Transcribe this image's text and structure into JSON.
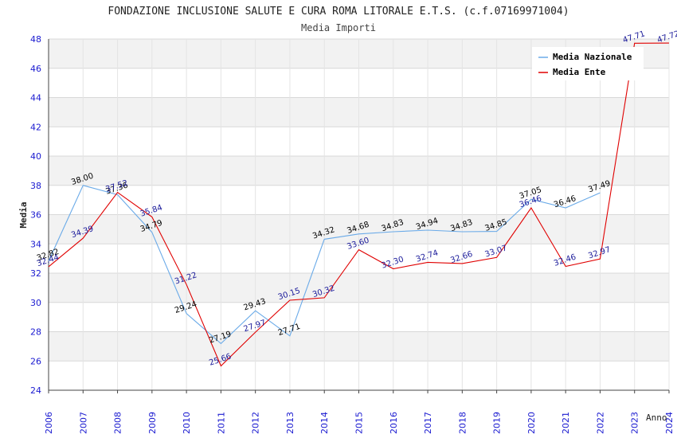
{
  "chart_data": {
    "type": "line",
    "title": "FONDAZIONE INCLUSIONE SALUTE E CURA ROMA LITORALE E.T.S. (c.f.07169971004)",
    "subtitle": "Media Importi",
    "xlabel": "Anno",
    "ylabel": "Media",
    "ylim": [
      24,
      48
    ],
    "yticks": [
      24,
      26,
      28,
      30,
      32,
      34,
      36,
      38,
      40,
      42,
      44,
      46,
      48
    ],
    "x": [
      "2006",
      "2007",
      "2008",
      "2009",
      "2010",
      "2011",
      "2012",
      "2013",
      "2014",
      "2015",
      "2016",
      "2017",
      "2018",
      "2019",
      "2020",
      "2021",
      "2022",
      "2023",
      "2024"
    ],
    "grid": true,
    "legend_position": "top-right",
    "series": [
      {
        "name": "Media Nazionale",
        "color": "#6aaae8",
        "label_color": "#000000",
        "values": [
          32.82,
          38.0,
          37.36,
          34.79,
          29.24,
          27.19,
          29.43,
          27.71,
          34.32,
          34.68,
          34.83,
          34.94,
          34.83,
          34.85,
          37.05,
          36.46,
          37.49,
          null,
          null
        ],
        "labels": [
          "32.82",
          "38.00",
          "37.36",
          "34.79",
          "29.24",
          "27.19",
          "29.43",
          "27.71",
          "34.32",
          "34.68",
          "34.83",
          "34.94",
          "34.83",
          "34.85",
          "37.05",
          "36.46",
          "37.49",
          "",
          ""
        ]
      },
      {
        "name": "Media Ente",
        "color": "#e00000",
        "label_color": "#1a1a9a",
        "values": [
          32.44,
          34.39,
          37.52,
          35.84,
          31.22,
          25.66,
          27.97,
          30.15,
          30.32,
          33.6,
          32.3,
          32.74,
          32.66,
          33.07,
          36.46,
          32.46,
          32.97,
          47.71,
          47.72
        ],
        "labels": [
          "32.44",
          "34.39",
          "37.52",
          "35.84",
          "31.22",
          "25.66",
          "27.97",
          "30.15",
          "30.32",
          "33.60",
          "32.30",
          "32.74",
          "32.66",
          "33.07",
          "36.46",
          "32.46",
          "32.97",
          "47.71",
          "47.72"
        ]
      }
    ]
  }
}
